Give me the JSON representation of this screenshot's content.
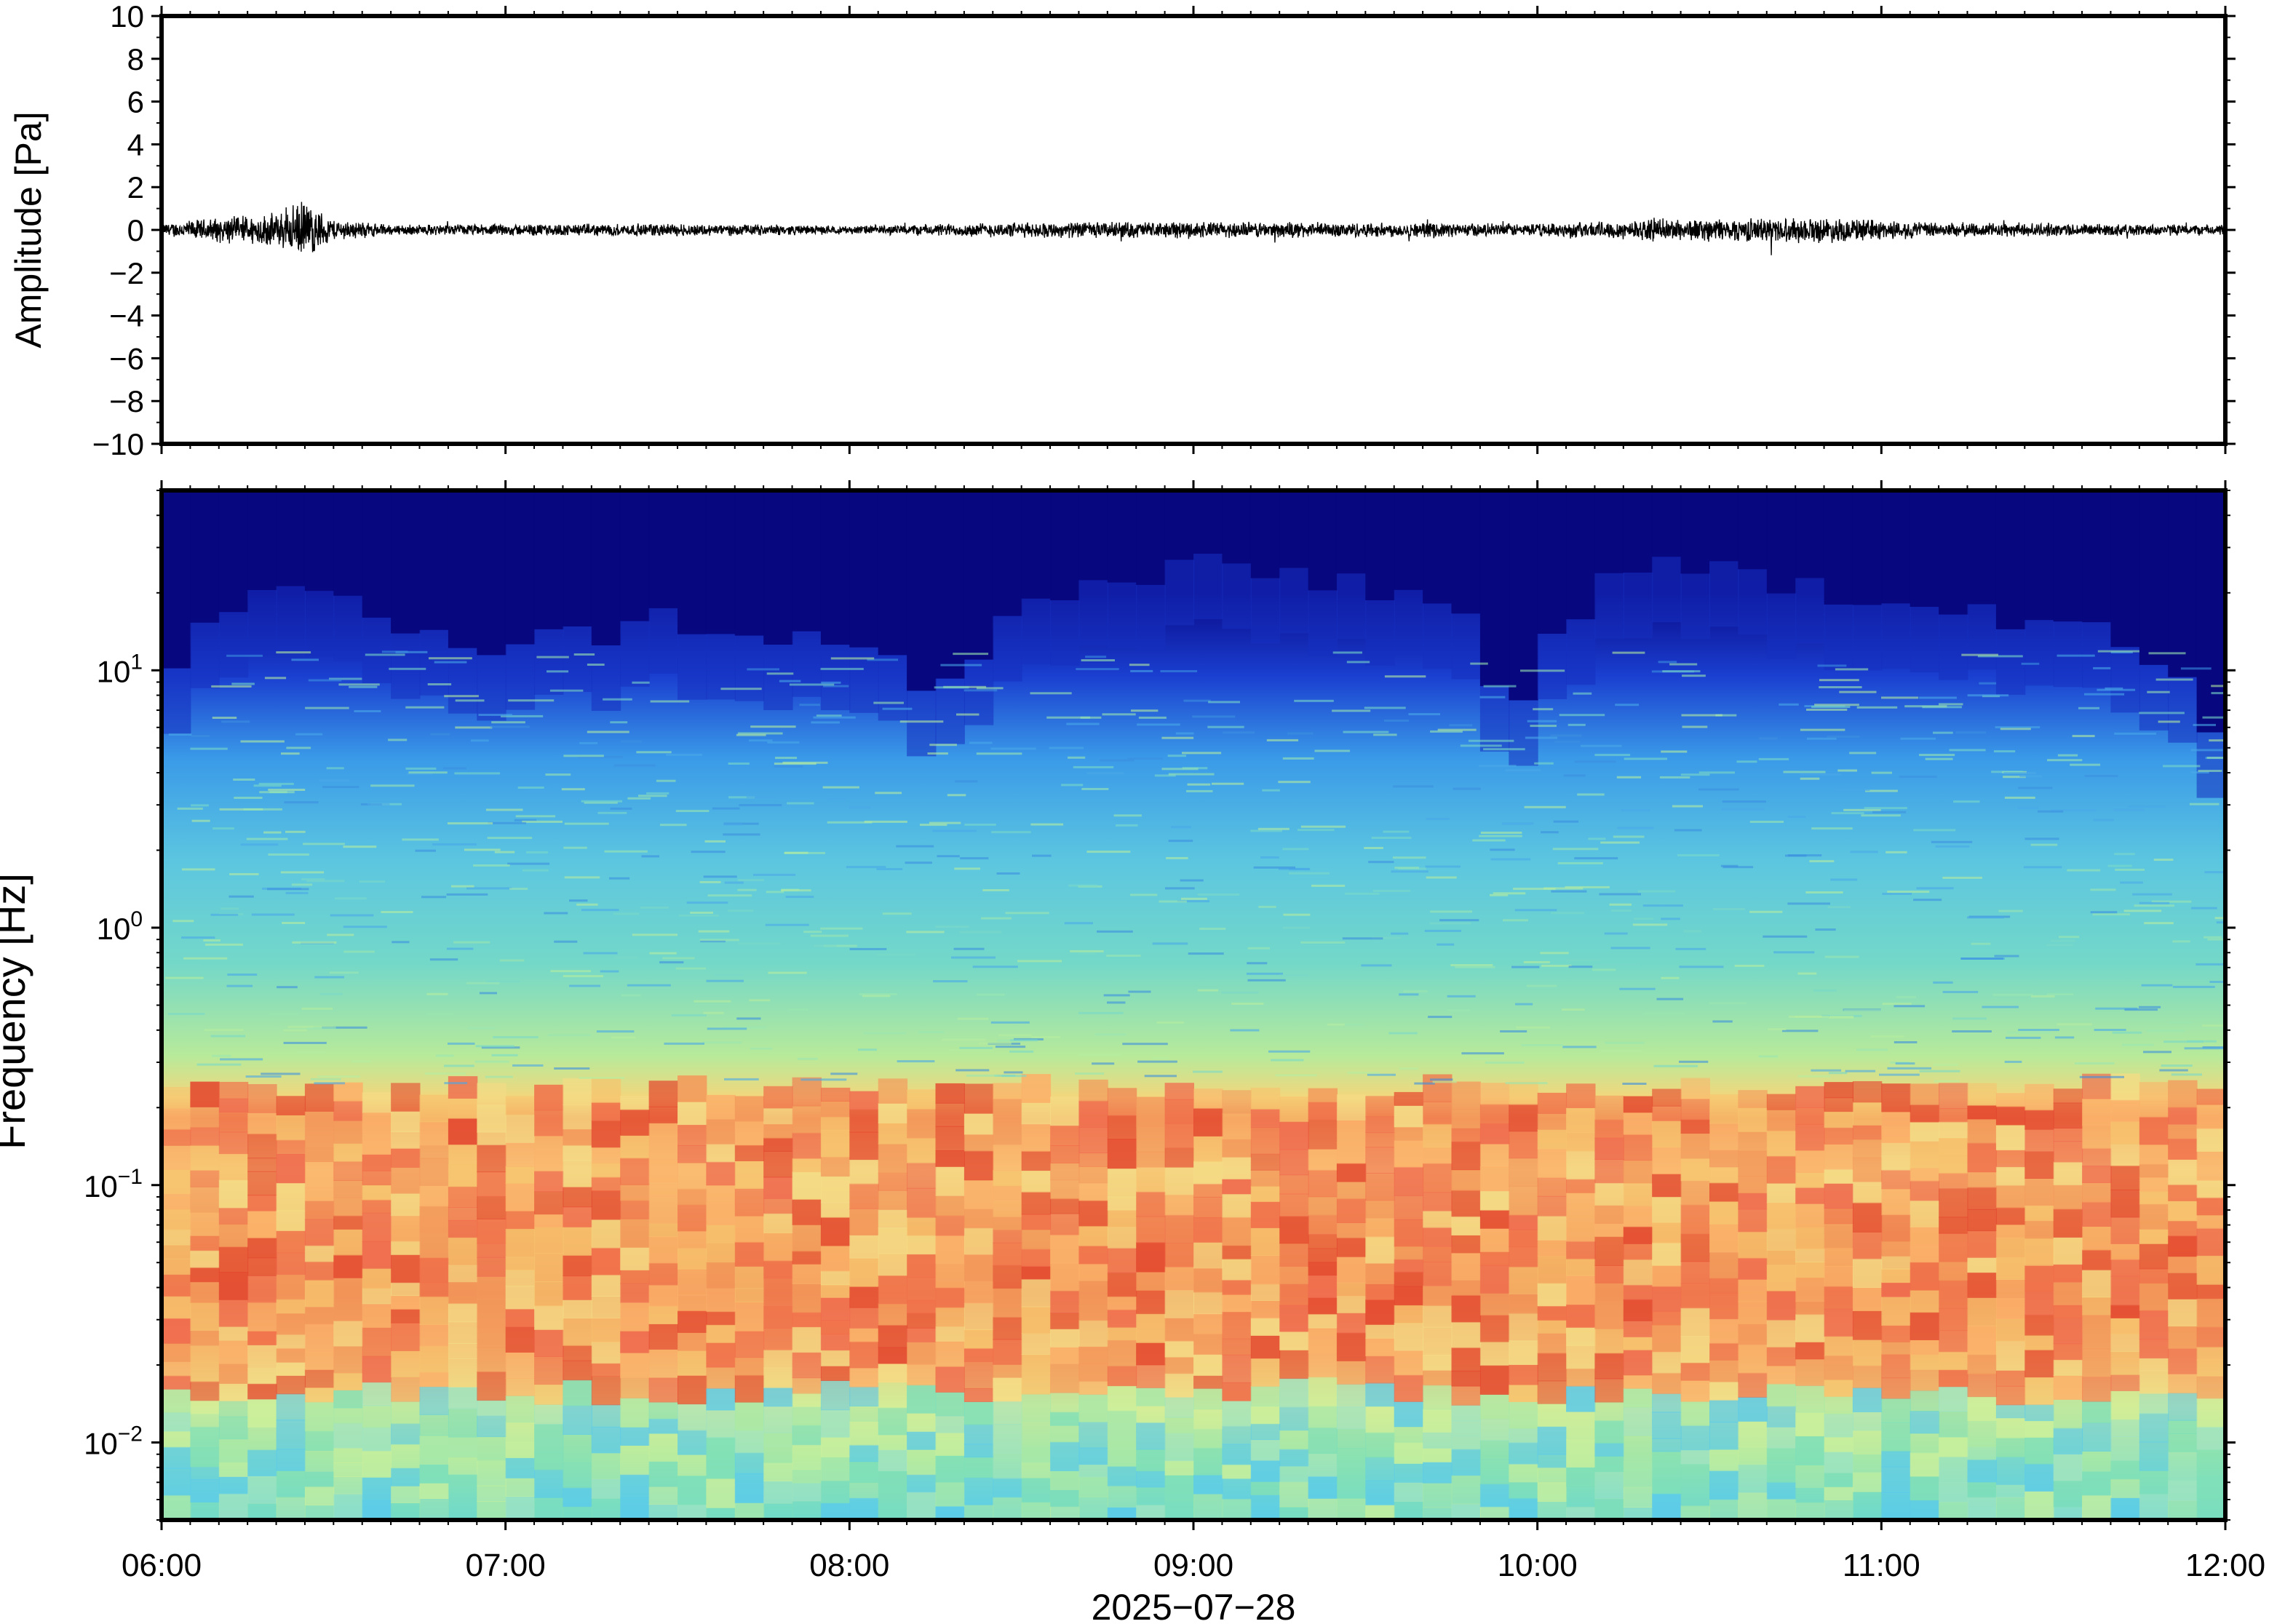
{
  "chart_data": [
    {
      "type": "line",
      "ylabel": "Amplitude [Pa]",
      "ylim": [
        -10,
        10
      ],
      "yticks": [
        "10",
        "8",
        "6",
        "4",
        "2",
        "0",
        "−2",
        "−4",
        "−6",
        "−8",
        "−10"
      ],
      "ytick_values": [
        10,
        8,
        6,
        4,
        2,
        0,
        -2,
        -4,
        -6,
        -8,
        -10
      ],
      "xlim": [
        "06:00",
        "12:00"
      ],
      "series": [
        {
          "envelope": [
            {
              "t": "06:00",
              "amp": 0.3
            },
            {
              "t": "06:10",
              "amp": 0.6
            },
            {
              "t": "06:20",
              "amp": 0.8
            },
            {
              "t": "06:25",
              "amp": 1.4
            },
            {
              "t": "06:30",
              "amp": 0.5
            },
            {
              "t": "06:40",
              "amp": 0.25
            },
            {
              "t": "07:30",
              "amp": 0.3
            },
            {
              "t": "08:00",
              "amp": 0.2
            },
            {
              "t": "08:25",
              "amp": 0.35
            },
            {
              "t": "09:00",
              "amp": 0.4
            },
            {
              "t": "09:30",
              "amp": 0.35
            },
            {
              "t": "10:00",
              "amp": 0.3
            },
            {
              "t": "10:20",
              "amp": 0.5
            },
            {
              "t": "10:50",
              "amp": 0.6
            },
            {
              "t": "11:10",
              "amp": 0.35
            },
            {
              "t": "12:00",
              "amp": 0.25
            }
          ]
        }
      ]
    },
    {
      "type": "heatmap",
      "ylabel": "Frequency [Hz]",
      "xlabel": "2025−07−28",
      "yscale": "log",
      "ylim": [
        0.005,
        50
      ],
      "yticks": [
        {
          "base": "10",
          "exp": "1",
          "value": 10
        },
        {
          "base": "10",
          "exp": "0",
          "value": 1
        },
        {
          "base": "10",
          "exp": "−1",
          "value": 0.1
        },
        {
          "base": "10",
          "exp": "−2",
          "value": 0.01
        }
      ],
      "xticks": [
        "06:00",
        "07:00",
        "08:00",
        "09:00",
        "10:00",
        "11:00",
        "12:00"
      ],
      "colormap": "jet",
      "color_description": "dark blue above ~10–20 Hz, cyan/green 0.3–5 Hz, yellow-orange-red band 0.02–0.2 Hz, green/cyan below 0.015 Hz",
      "upper_edge_hz_by_time": [
        {
          "t": "06:00",
          "hz": 8
        },
        {
          "t": "06:15",
          "hz": 20
        },
        {
          "t": "06:30",
          "hz": 18
        },
        {
          "t": "07:00",
          "hz": 12
        },
        {
          "t": "07:30",
          "hz": 16
        },
        {
          "t": "08:00",
          "hz": 12
        },
        {
          "t": "08:20",
          "hz": 8
        },
        {
          "t": "08:30",
          "hz": 18
        },
        {
          "t": "09:00",
          "hz": 25
        },
        {
          "t": "09:30",
          "hz": 22
        },
        {
          "t": "09:50",
          "hz": 15
        },
        {
          "t": "09:55",
          "hz": 5
        },
        {
          "t": "10:10",
          "hz": 20
        },
        {
          "t": "10:25",
          "hz": 25
        },
        {
          "t": "10:45",
          "hz": 22
        },
        {
          "t": "11:15",
          "hz": 18
        },
        {
          "t": "11:40",
          "hz": 14
        },
        {
          "t": "12:00",
          "hz": 5
        }
      ]
    }
  ]
}
